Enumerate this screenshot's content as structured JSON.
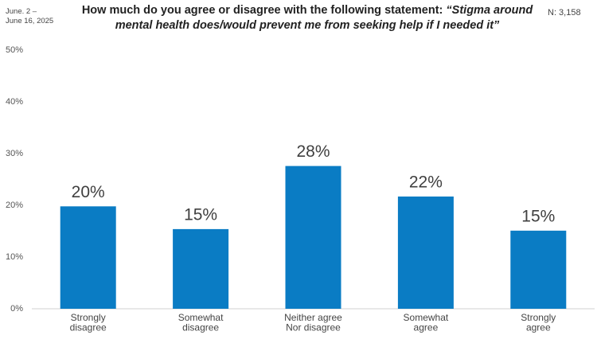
{
  "chart_data": {
    "type": "bar",
    "title": {
      "text": "How much do you agree or disagree with the following statement:",
      "quote": "“Stigma around mental health does/would prevent me from seeking help if I needed it”"
    },
    "date": [
      "June. 2 –",
      "June 16, 2025"
    ],
    "sample": "N: 3,158",
    "categories": [
      [
        "Strongly",
        "disagree"
      ],
      [
        "Somewhat",
        "disagree"
      ],
      [
        "Neither agree",
        "Nor disagree"
      ],
      [
        "Somewhat",
        "agree"
      ],
      [
        "Strongly",
        "agree"
      ]
    ],
    "values": [
      19.8,
      15.4,
      27.6,
      21.7,
      15.1
    ],
    "value_labels": [
      "20%",
      "15%",
      "28%",
      "22%",
      "15%"
    ],
    "color": "#0a7cc4",
    "ylim": [
      0,
      50
    ],
    "yticks": [
      {
        "value": 0,
        "label": "0%"
      },
      {
        "value": 10,
        "label": "10%"
      },
      {
        "value": 20,
        "label": "20%"
      },
      {
        "value": 30,
        "label": "30%"
      },
      {
        "value": 40,
        "label": "40%"
      },
      {
        "value": 50,
        "label": "50%"
      }
    ],
    "grid": false
  }
}
